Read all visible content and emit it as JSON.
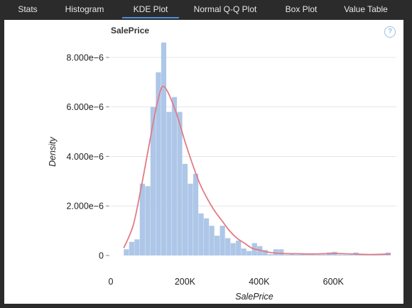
{
  "tabs": [
    {
      "label": "Stats"
    },
    {
      "label": "Histogram"
    },
    {
      "label": "KDE Plot",
      "active": true
    },
    {
      "label": "Normal Q-Q Plot"
    },
    {
      "label": "Box Plot"
    },
    {
      "label": "Value Table"
    }
  ],
  "help_icon": "?",
  "colors": {
    "background": "#2b2b2b",
    "tab_active_underline": "#4a90d9",
    "histogram_bar": "#aec7e8",
    "kde_line": "#e07c86",
    "grid": "#e6e6e6"
  },
  "chart_data": {
    "type": "bar",
    "title": "SalePrice",
    "xlabel": "SalePrice",
    "ylabel": "Density",
    "xlim": [
      0,
      770000
    ],
    "ylim": [
      0,
      8.8e-06
    ],
    "x_ticks": [
      0,
      200000,
      400000,
      600000
    ],
    "x_tick_labels": [
      "0",
      "200K",
      "400K",
      "600K"
    ],
    "y_ticks": [
      0,
      2e-06,
      4e-06,
      6e-06,
      8e-06
    ],
    "y_tick_labels": [
      "0",
      "2.000e−6",
      "4.000e−6",
      "6.000e−6",
      "8.000e−6"
    ],
    "grid": true,
    "bins": {
      "start": 34900,
      "width": 14400,
      "densities": [
        2.5e-07,
        5.5e-07,
        6.5e-07,
        2.9e-06,
        2.8e-06,
        6e-06,
        7.4e-06,
        8.6e-06,
        5.8e-06,
        6.4e-06,
        5.8e-06,
        3.7e-06,
        2.9e-06,
        3.3e-06,
        1.7e-06,
        1.5e-06,
        1.2e-06,
        8e-07,
        1.2e-06,
        7e-07,
        5e-07,
        6e-07,
        2.8e-07,
        1.8e-07,
        5e-07,
        3.8e-07,
        2.2e-07,
        5e-08,
        2.5e-07,
        2.5e-07,
        3e-08,
        5e-08,
        3e-08,
        5e-08,
        3e-08,
        3e-08,
        3e-08,
        3e-08,
        1.2e-07,
        1.5e-07,
        3e-08,
        3e-08,
        3e-08,
        1.2e-07,
        3e-08,
        3e-08,
        3e-08,
        3e-08,
        3e-08,
        1.2e-07
      ]
    },
    "series": [
      {
        "type": "line",
        "x": [
          34900,
          60000,
          80000,
          100000,
          120000,
          135000,
          145000,
          160000,
          180000,
          200000,
          220000,
          240000,
          260000,
          280000,
          300000,
          320000,
          340000,
          360000,
          380000,
          400000,
          430000,
          460000,
          500000,
          550000,
          600000,
          650000,
          700000,
          755000
        ],
        "y": [
          3e-07,
          1.2e-06,
          2.6e-06,
          4.2e-06,
          5.8e-06,
          6.7e-06,
          6.8e-06,
          6.4e-06,
          5.6e-06,
          4.6e-06,
          3.7e-06,
          2.9e-06,
          2.3e-06,
          1.8e-06,
          1.4e-06,
          1e-06,
          7e-07,
          5e-07,
          3e-07,
          2.2e-07,
          1.2e-07,
          8e-08,
          7e-08,
          6e-08,
          8e-08,
          6e-08,
          4e-08,
          6e-08
        ]
      }
    ]
  }
}
